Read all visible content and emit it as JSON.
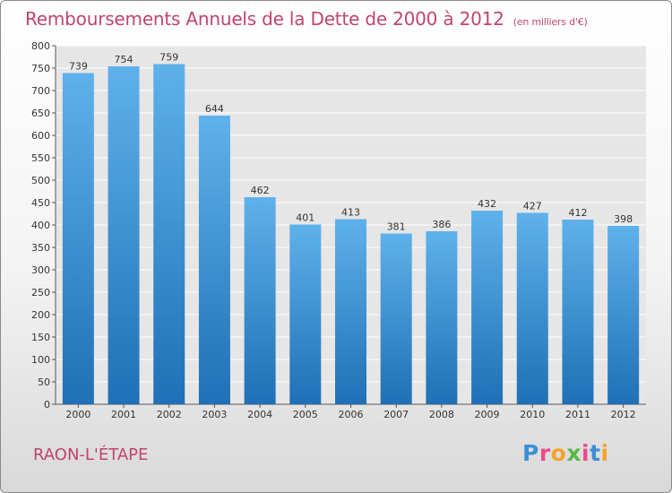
{
  "title": "Remboursements Annuels de la Dette de 2000 à 2012",
  "subtitle": "(en milliers d'€)",
  "place": "RAON-L'ÉTAPE",
  "logo": {
    "letters": [
      "P",
      "r",
      "o",
      "x",
      "i",
      "t",
      "i"
    ],
    "colors": [
      "#3c8fd6",
      "#e94b8a",
      "#f4a32a",
      "#57b947",
      "#e94b8a",
      "#3c8fd6",
      "#f4a32a"
    ]
  },
  "colors": {
    "bar_top": "#5fb1eb",
    "bar_bottom": "#1f70b5",
    "title": "#c0446f"
  },
  "chart_data": {
    "type": "bar",
    "categories": [
      "2000",
      "2001",
      "2002",
      "2003",
      "2004",
      "2005",
      "2006",
      "2007",
      "2008",
      "2009",
      "2010",
      "2011",
      "2012"
    ],
    "values": [
      739,
      754,
      759,
      644,
      462,
      401,
      413,
      381,
      386,
      432,
      427,
      412,
      398
    ],
    "ylim": [
      0,
      800
    ],
    "yticks": [
      0,
      50,
      100,
      150,
      200,
      250,
      300,
      350,
      400,
      450,
      500,
      550,
      600,
      650,
      700,
      750,
      800
    ],
    "grid": true
  }
}
